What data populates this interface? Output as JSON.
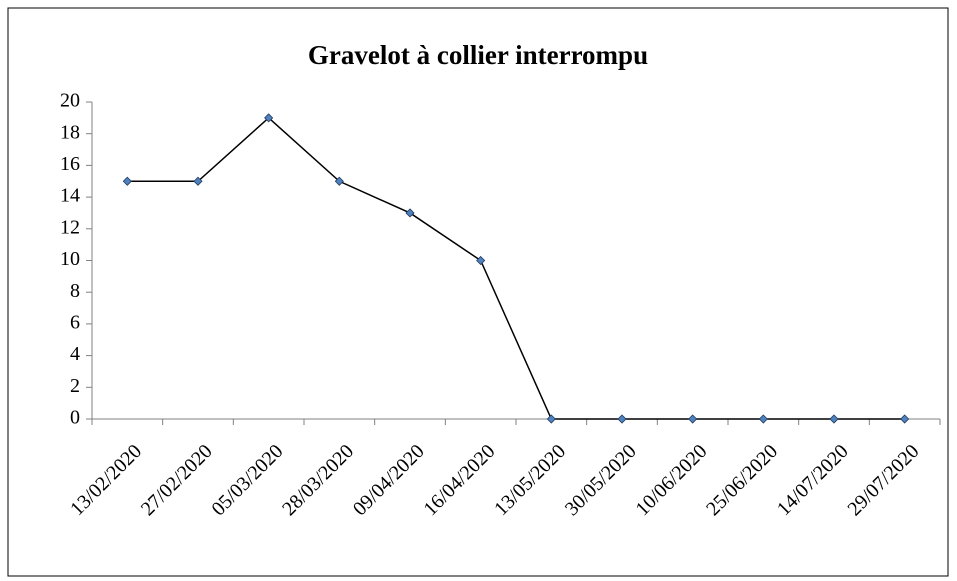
{
  "chart_data": {
    "type": "line",
    "title": "Gravelot à collier interrompu",
    "categories": [
      "13/02/2020",
      "27/02/2020",
      "05/03/2020",
      "28/03/2020",
      "09/04/2020",
      "16/04/2020",
      "13/05/2020",
      "30/05/2020",
      "10/06/2020",
      "25/06/2020",
      "14/07/2020",
      "29/07/2020"
    ],
    "values": [
      15,
      15,
      19,
      15,
      13,
      10,
      0,
      0,
      0,
      0,
      0,
      0
    ],
    "color": "#000000",
    "marker_color": "#4f81bd",
    "ylim": [
      0,
      20
    ],
    "yticks": [
      0,
      2,
      4,
      6,
      8,
      10,
      12,
      14,
      16,
      18,
      20
    ],
    "grid": false
  }
}
